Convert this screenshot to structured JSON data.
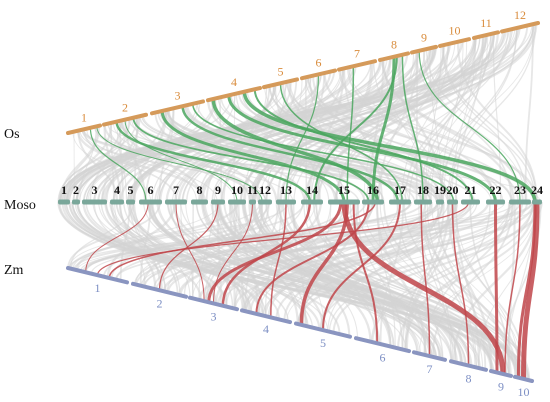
{
  "species": {
    "top": "Os",
    "middle": "Moso",
    "bottom": "Zm"
  },
  "colors": {
    "os_chromosome": "#d59a5a",
    "moso_chromosome": "#7aa79a",
    "zm_chromosome": "#8a95c0",
    "os_label": "#d98c3c",
    "zm_label": "#7d8fc4",
    "moso_label": "#111111",
    "background_links": "#d4d4d4",
    "os_moso_links": "#4aa65e",
    "moso_zm_links": "#c0454a"
  },
  "os_chromosomes": [
    "1",
    "2",
    "3",
    "4",
    "5",
    "6",
    "7",
    "8",
    "9",
    "10",
    "11",
    "12"
  ],
  "moso_chromosomes": [
    "1",
    "2",
    "3",
    "4",
    "5",
    "6",
    "7",
    "8",
    "9",
    "10",
    "11",
    "12",
    "13",
    "14",
    "15",
    "16",
    "17",
    "18",
    "19",
    "20",
    "21",
    "22",
    "23",
    "24"
  ],
  "zm_chromosomes": [
    "1",
    "2",
    "3",
    "4",
    "5",
    "6",
    "7",
    "8",
    "9",
    "10"
  ]
}
